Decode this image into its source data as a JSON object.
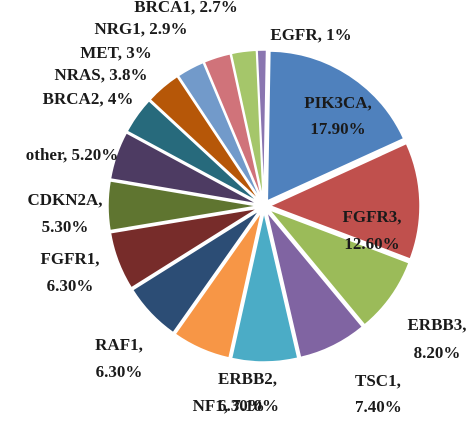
{
  "chart_data": {
    "type": "pie",
    "slices": [
      {
        "name": "PIK3CA",
        "value_text": "17.90%",
        "value": 17.9,
        "color": "#4f81bd"
      },
      {
        "name": "FGFR3",
        "value_text": "12.60%",
        "value": 12.6,
        "color": "#c0504d"
      },
      {
        "name": "ERBB3",
        "value_text": "8.20%",
        "value": 8.2,
        "color": "#9bbb59"
      },
      {
        "name": "TSC1",
        "value_text": "7.40%",
        "value": 7.4,
        "color": "#8064a2"
      },
      {
        "name": "NF1",
        "value_text": "7.10%",
        "value": 7.1,
        "color": "#4bacc6"
      },
      {
        "name": "ERBB2",
        "value_text": "6.30%",
        "value": 6.3,
        "color": "#f79646"
      },
      {
        "name": "RAF1",
        "value_text": "6.30%",
        "value": 6.3,
        "color": "#2c4d75"
      },
      {
        "name": "FGFR1",
        "value_text": "6.30%",
        "value": 6.3,
        "color": "#772c2a"
      },
      {
        "name": "CDKN2A",
        "value_text": "5.30%",
        "value": 5.3,
        "color": "#5f7530"
      },
      {
        "name": "other",
        "value_text": "5.20%",
        "value": 5.2,
        "color": "#4d3b62"
      },
      {
        "name": "BRCA2",
        "value_text": "4%",
        "value": 4.0,
        "color": "#276a7c"
      },
      {
        "name": "NRAS",
        "value_text": "3.8%",
        "value": 3.8,
        "color": "#b65708"
      },
      {
        "name": "MET",
        "value_text": "3%",
        "value": 3.0,
        "color": "#729aca"
      },
      {
        "name": "NRG1",
        "value_text": "2.9%",
        "value": 2.9,
        "color": "#d0737a"
      },
      {
        "name": "BRCA1",
        "value_text": "2.7%",
        "value": 2.7,
        "color": "#a5c66a"
      },
      {
        "name": "EGFR",
        "value_text": "1%",
        "value": 1.0,
        "color": "#8a76b0"
      }
    ]
  }
}
